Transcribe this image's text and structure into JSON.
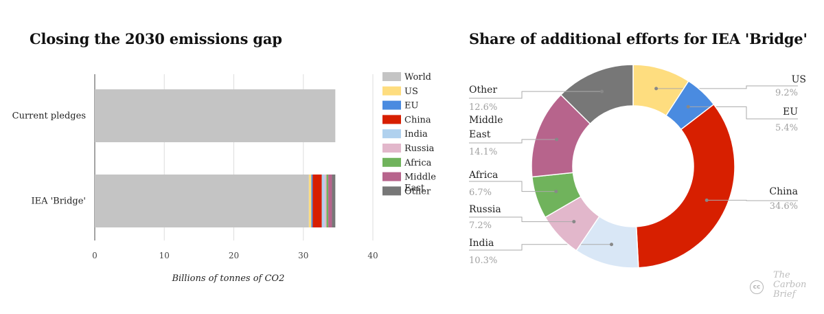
{
  "chart_data": [
    {
      "type": "bar",
      "orientation": "horizontal",
      "stacked": true,
      "title": "Closing the 2030 emissions gap",
      "categories": [
        "Current pledges",
        "IEA 'Bridge'"
      ],
      "xlabel": "Billions of tonnes of CO2",
      "xlim": [
        0,
        40
      ],
      "xticks": [
        0,
        10,
        20,
        30,
        40
      ],
      "grid": true,
      "legend_position": "right",
      "series": [
        {
          "name": "World",
          "color": "#c4c4c4",
          "values": [
            34.6,
            30.8
          ]
        },
        {
          "name": "US",
          "color": "#fedd7f",
          "values": [
            0,
            0.35
          ]
        },
        {
          "name": "EU",
          "color": "#4a8be0",
          "values": [
            0,
            0.2
          ]
        },
        {
          "name": "China",
          "color": "#d71f00",
          "values": [
            0,
            1.3
          ]
        },
        {
          "name": "India",
          "color": "#b0d1ee",
          "values": [
            0,
            0.4
          ]
        },
        {
          "name": "Russia",
          "color": "#e2b7cb",
          "values": [
            0,
            0.28
          ]
        },
        {
          "name": "Africa",
          "color": "#70b35c",
          "values": [
            0,
            0.26
          ]
        },
        {
          "name": "Middle East",
          "color": "#b7648c",
          "values": [
            0,
            0.53
          ]
        },
        {
          "name": "Other",
          "color": "#777777",
          "values": [
            0,
            0.48
          ]
        }
      ]
    },
    {
      "type": "pie",
      "variant": "donut",
      "title": "Share of additional efforts for IEA 'Bridge'",
      "slices": [
        {
          "name": "US",
          "value": 9.2,
          "label": "9.2%",
          "color": "#fedd7f"
        },
        {
          "name": "EU",
          "value": 5.4,
          "label": "5.4%",
          "color": "#4a8be0"
        },
        {
          "name": "China",
          "value": 34.6,
          "label": "34.6%",
          "color": "#d71f00"
        },
        {
          "name": "India",
          "value": 10.3,
          "label": "10.3%",
          "color": "#d9e7f6"
        },
        {
          "name": "Russia",
          "value": 7.2,
          "label": "7.2%",
          "color": "#e2b7cb"
        },
        {
          "name": "Africa",
          "value": 6.7,
          "label": "6.7%",
          "color": "#70b35c"
        },
        {
          "name": "Middle East",
          "value": 14.1,
          "label": "14.1%",
          "color": "#b7648c"
        },
        {
          "name": "Other",
          "value": 12.6,
          "label": "12.6%",
          "color": "#777777"
        }
      ]
    }
  ],
  "branding": {
    "logo_lines": [
      "The",
      "Carbon",
      "Brief"
    ],
    "license_icon": "cc",
    "license_icon_name": "creative-commons-icon"
  }
}
